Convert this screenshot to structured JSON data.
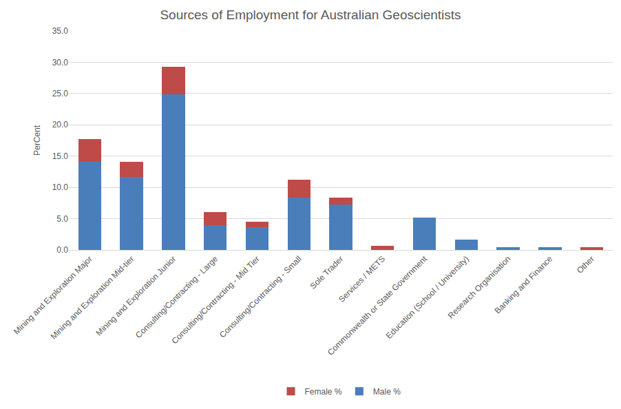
{
  "chart_data": {
    "type": "bar",
    "title": "Sources of Employment for Australian Geoscientists",
    "y_label": "PerCent",
    "categories": [
      "Mining and Exploration Major",
      "Mining and Exploration Mid-tier",
      "Mining and Exploration Junior",
      "Consulting/Contracting - Large",
      "Consulting/Contracting - Mid Tier",
      "Consulting/Contracting - Small",
      "Sole Trader",
      "Services / METS",
      "Commonwealth or State Government",
      "Education (School / University)",
      "Research Organisation",
      "Banking and Finance",
      "Other"
    ],
    "series": [
      {
        "name": "Male %",
        "color": "#4a7ebb",
        "values": [
          14.1,
          11.7,
          24.9,
          4.0,
          3.6,
          8.4,
          7.3,
          0,
          5.2,
          1.6,
          0.4,
          0.4,
          0
        ]
      },
      {
        "name": "Female %",
        "color": "#be4b48",
        "values": [
          3.6,
          2.4,
          4.4,
          2.0,
          0.9,
          2.8,
          1.1,
          0.7,
          0,
          0,
          0,
          0,
          0.4
        ]
      }
    ],
    "stacked": true,
    "ylim": [
      0,
      35
    ],
    "yticks": [
      {
        "value": 0,
        "label": "0.0"
      },
      {
        "value": 5,
        "label": "5.0"
      },
      {
        "value": 10,
        "label": "10.0"
      },
      {
        "value": 15,
        "label": "15.0"
      },
      {
        "value": 20,
        "label": "20.0"
      },
      {
        "value": 25,
        "label": "25.0"
      },
      {
        "value": 30,
        "label": "30.0"
      },
      {
        "value": 35,
        "label": "35.0"
      }
    ],
    "grid": true,
    "legend": "bottom"
  }
}
